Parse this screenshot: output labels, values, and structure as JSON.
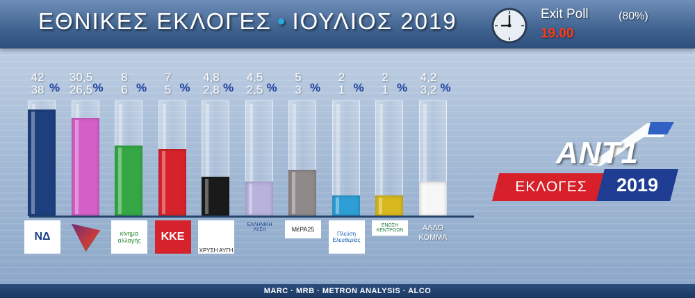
{
  "header": {
    "title": "ΕΘΝΙΚΕΣ ΕΚΛΟΓΕΣ",
    "separator": "•",
    "subtitle": "ΙΟΥΛΙΟΣ 2019",
    "exit_poll_label": "Exit Poll",
    "exit_poll_pct": "(80%)",
    "time": "19.00"
  },
  "chart_data": {
    "type": "bar",
    "unit": "%",
    "categories": [
      "ΝΔ",
      "ΣΥΡΙΖΑ",
      "ΚΙΝΗΜΑ ΑΛΛΑΓΗΣ",
      "ΚΚΕ",
      "ΧΡΥΣΗ ΑΥΓΗ",
      "ΕΛΛΗΝΙΚΗ ΛΥΣΗ",
      "ΜέΡΑ25",
      "ΠΛΕΥΣΗ ΕΛΕΥΘΕΡΙΑΣ",
      "ΕΝΩΣΗ ΚΕΝΤΡΩΟΝ",
      "ΑΛΛΟ ΚΟΜΜΑ"
    ],
    "series": [
      {
        "values": [
          42,
          30.5,
          8,
          7,
          4.8,
          4.5,
          5,
          2,
          2,
          4.2
        ]
      },
      {
        "values": [
          38,
          26.5,
          6,
          5,
          2.8,
          2.5,
          3,
          1,
          1,
          3.2
        ]
      }
    ],
    "labels_high": [
      "42",
      "30,5",
      "8",
      "7",
      "4,8",
      "4,5",
      "5",
      "2",
      "2",
      "4,2"
    ],
    "labels_low": [
      "38",
      "26,5",
      "6",
      "5",
      "2,8",
      "2,5",
      "3",
      "1",
      "1",
      "3,2"
    ],
    "bar_fill_fraction": [
      0.92,
      0.85,
      0.61,
      0.58,
      0.34,
      0.3,
      0.4,
      0.18,
      0.18,
      0.3
    ],
    "colors": [
      "#1e3f7e",
      "#d35fc7",
      "#35a845",
      "#d6232b",
      "#1a1a1a",
      "#b8b2dc",
      "#8f8989",
      "#2e9fd6",
      "#d7b81d",
      "#f6f6f6"
    ],
    "grid": false,
    "legend": "none"
  },
  "logos": [
    {
      "icon": "nd-logo-icon",
      "text": "ΝΔ"
    },
    {
      "icon": "syriza-logo-icon",
      "text": ""
    },
    {
      "icon": "kinal-logo-icon",
      "text": "κίνημα αλλαγής"
    },
    {
      "icon": "kke-logo-icon",
      "text": "ΚΚΕ"
    },
    {
      "icon": "xrysi-avgi-logo-icon",
      "text": "ΧΡΥΣΗ ΑΥΓΗ"
    },
    {
      "icon": "elliniki-lysi-logo-icon",
      "text": "ΕΛΛΗΝΙΚΗ ΛΥΣΗ"
    },
    {
      "icon": "mera25-logo-icon",
      "text": "ΜέΡΑ25"
    },
    {
      "icon": "plefsi-logo-icon",
      "text": "Πλεύση Ελευθερίας"
    },
    {
      "icon": "enosi-kentroon-logo-icon",
      "text": "ΕΝΩΣΗ ΚΕΝΤΡΩΩΝ"
    },
    {
      "icon": "",
      "text": "ΑΛΛΟ ΚΟΜΜΑ"
    }
  ],
  "brand": {
    "name": "ANT1",
    "label": "ΕΚΛΟΓΕΣ",
    "year": "2019"
  },
  "sources": "MARC · MRB · METRON ANALYSIS · ALCO"
}
